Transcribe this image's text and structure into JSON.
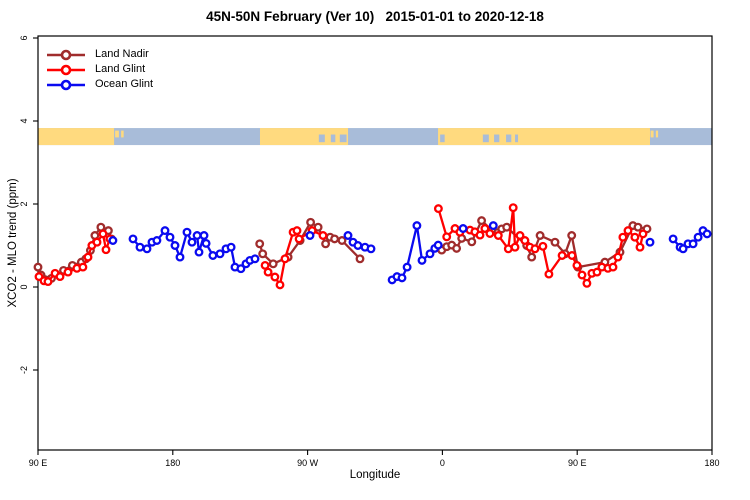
{
  "title": "45N-50N February (Ver 10)   2015-01-01 to 2020-12-18",
  "colors": {
    "land_nadir": "#A02C2C",
    "land_glint": "#FF0000",
    "ocean_glint": "#0A0AF0",
    "map_land": "#FFDA7F",
    "map_ocean": "#A8BCD9",
    "axis": "#000000",
    "marker_fill": "#FFFFFF"
  },
  "legend": {
    "items": [
      {
        "label": "Land Nadir",
        "color": "#A02C2C"
      },
      {
        "label": "Land Glint",
        "color": "#FF0000"
      },
      {
        "label": "Ocean Glint",
        "color": "#0A0AF0"
      }
    ]
  },
  "chart_data": {
    "type": "line",
    "title": "45N-50N February (Ver 10)   2015-01-01 to 2020-12-18",
    "x_axis": {
      "label": "Longitude",
      "unit": "degrees east of 90E (longitude wraps 90E-180-90W-0-90E-180)",
      "range": [
        0,
        450
      ],
      "ticks": [
        {
          "pos": 0,
          "label": "90 E"
        },
        {
          "pos": 90,
          "label": "180"
        },
        {
          "pos": 180,
          "label": "90 W"
        },
        {
          "pos": 270,
          "label": "0"
        },
        {
          "pos": 360,
          "label": "90 E"
        },
        {
          "pos": 450,
          "label": "180"
        }
      ]
    },
    "y_axis": {
      "label": "XCO2 - MLO trend (ppm)",
      "range": [
        -3.9,
        6.0
      ],
      "ticks": [
        {
          "val": 6,
          "label": "6"
        },
        {
          "val": 4,
          "label": "4"
        },
        {
          "val": 2,
          "label": "2"
        },
        {
          "val": 0,
          "label": "0"
        },
        {
          "val": -2,
          "label": "-2"
        }
      ]
    },
    "grid": false,
    "legend_position": "top-left-inside",
    "map_strip": {
      "description": "coastline band showing land/ocean along the 45N-50N latitude zone",
      "y_range_ppm": [
        3.42,
        3.83
      ],
      "land_color": "#FFDA7F",
      "ocean_color": "#A8BCD9",
      "land_segments_deg": [
        [
          0,
          50.8
        ],
        [
          148.2,
          207.0
        ],
        [
          267.1,
          408.6
        ]
      ],
      "water_inlets_deg": [
        [
          187.5,
          191.5
        ],
        [
          195.5,
          198.5
        ],
        [
          201.5,
          206
        ],
        [
          268.5,
          271.5
        ],
        [
          297,
          301
        ],
        [
          304.5,
          308
        ],
        [
          312.5,
          316
        ],
        [
          318.5,
          320.5
        ]
      ],
      "island_specks_deg": [
        [
          51.5,
          54
        ],
        [
          55.5,
          57.2
        ],
        [
          409,
          411
        ],
        [
          412.5,
          414
        ]
      ]
    },
    "series": [
      {
        "name": "Land Nadir",
        "color": "#A02C2C",
        "marker": "open-circle",
        "runs": [
          [
            [
              0,
              0.48
            ],
            [
              2,
              0.29
            ],
            [
              9,
              0.21
            ],
            [
              17,
              0.4
            ],
            [
              23,
              0.52
            ],
            [
              29,
              0.6
            ],
            [
              32,
              0.68
            ],
            [
              35,
              0.88
            ],
            [
              38,
              1.24
            ],
            [
              42,
              1.44
            ],
            [
              47,
              1.36
            ],
            [
              49,
              1.16
            ]
          ],
          [
            [
              148,
              1.04
            ],
            [
              150,
              0.8
            ],
            [
              157,
              0.56
            ],
            [
              167,
              0.72
            ],
            [
              175,
              1.12
            ],
            [
              182,
              1.56
            ],
            [
              187,
              1.44
            ],
            [
              192,
              1.04
            ],
            [
              195,
              1.2
            ],
            [
              198,
              1.16
            ],
            [
              203,
              1.12
            ],
            [
              215,
              0.68
            ]
          ],
          [
            [
              269.5,
              0.89
            ],
            [
              272.9,
              0.97
            ],
            [
              276.2,
              1.01
            ],
            [
              279.5,
              0.93
            ],
            [
              282.9,
              1.17
            ],
            [
              289.6,
              1.09
            ],
            [
              296.2,
              1.6
            ],
            [
              302.9,
              1.37
            ],
            [
              309.6,
              1.4
            ],
            [
              312.9,
              1.44
            ],
            [
              326.3,
              1.0
            ],
            [
              329.6,
              0.72
            ],
            [
              335.2,
              1.24
            ],
            [
              345.2,
              1.08
            ],
            [
              351.9,
              0.8
            ],
            [
              356.3,
              1.24
            ],
            [
              360.5,
              0.48
            ],
            [
              378.5,
              0.6
            ],
            [
              388.6,
              0.84
            ],
            [
              397.2,
              1.48
            ],
            [
              400.6,
              1.44
            ],
            [
              406.6,
              1.4
            ]
          ]
        ]
      },
      {
        "name": "Land Glint",
        "color": "#FF0000",
        "marker": "open-circle",
        "runs": [
          [
            [
              0.7,
              0.25
            ],
            [
              4,
              0.15
            ],
            [
              6.7,
              0.13
            ],
            [
              11.4,
              0.33
            ],
            [
              14.7,
              0.25
            ],
            [
              20,
              0.36
            ],
            [
              26,
              0.45
            ],
            [
              30,
              0.48
            ],
            [
              33.4,
              0.72
            ],
            [
              36,
              1.0
            ],
            [
              39.4,
              1.08
            ],
            [
              43.4,
              1.28
            ],
            [
              45.4,
              0.9
            ],
            [
              48,
              1.16
            ]
          ],
          [
            [
              151.6,
              0.52
            ],
            [
              153.6,
              0.36
            ],
            [
              158.2,
              0.24
            ],
            [
              161.6,
              0.05
            ],
            [
              164.9,
              0.68
            ],
            [
              170.3,
              1.32
            ],
            [
              172.9,
              1.36
            ],
            [
              174.3,
              1.16
            ],
            [
              183,
              1.36
            ],
            [
              190.3,
              1.24
            ]
          ],
          [
            [
              267.3,
              1.89
            ],
            [
              272.9,
              1.21
            ],
            [
              278.4,
              1.41
            ],
            [
              281.7,
              1.32
            ],
            [
              288.4,
              1.37
            ],
            [
              291.7,
              1.33
            ],
            [
              295.1,
              1.25
            ],
            [
              298.4,
              1.41
            ],
            [
              301.7,
              1.29
            ],
            [
              307.3,
              1.24
            ],
            [
              314,
              0.92
            ],
            [
              317.3,
              1.91
            ],
            [
              318.5,
              0.96
            ],
            [
              321.8,
              1.24
            ],
            [
              325.1,
              1.12
            ],
            [
              328.4,
              0.96
            ],
            [
              331.8,
              0.92
            ],
            [
              337.1,
              0.98
            ],
            [
              341.1,
              0.31
            ],
            [
              349.9,
              0.76
            ],
            [
              356.5,
              0.76
            ],
            [
              359.8,
              0.52
            ],
            [
              363.2,
              0.29
            ],
            [
              366.5,
              0.09
            ],
            [
              369.8,
              0.33
            ],
            [
              373.2,
              0.36
            ],
            [
              376.5,
              0.48
            ],
            [
              380.5,
              0.45
            ],
            [
              383.9,
              0.48
            ],
            [
              387.2,
              0.72
            ],
            [
              390.5,
              1.2
            ],
            [
              393.9,
              1.36
            ],
            [
              398.5,
              1.2
            ],
            [
              401.9,
              0.96
            ],
            [
              403.9,
              1.28
            ]
          ]
        ]
      },
      {
        "name": "Ocean Glint",
        "color": "#0A0AF0",
        "marker": "open-circle",
        "runs": [
          [
            [
              50,
              1.12
            ]
          ],
          [
            [
              63.4,
              1.16
            ],
            [
              68.1,
              0.96
            ],
            [
              72.8,
              0.92
            ],
            [
              76.1,
              1.08
            ],
            [
              79.4,
              1.12
            ],
            [
              84.8,
              1.36
            ],
            [
              88.1,
              1.2
            ],
            [
              91.5,
              1.0
            ],
            [
              94.8,
              0.72
            ],
            [
              99.5,
              1.32
            ],
            [
              102.8,
              1.08
            ],
            [
              106.2,
              1.24
            ],
            [
              107.5,
              0.84
            ],
            [
              110.8,
              1.24
            ],
            [
              112.2,
              1.05
            ],
            [
              116.8,
              0.76
            ],
            [
              121.5,
              0.8
            ],
            [
              125.5,
              0.92
            ],
            [
              128.9,
              0.96
            ],
            [
              131.5,
              0.48
            ],
            [
              135.5,
              0.44
            ],
            [
              138.9,
              0.56
            ],
            [
              141.5,
              0.64
            ],
            [
              144.9,
              0.68
            ]
          ],
          [
            [
              181.6,
              1.24
            ]
          ],
          [
            [
              207,
              1.24
            ],
            [
              210.3,
              1.08
            ],
            [
              213.6,
              1.0
            ],
            [
              218.3,
              0.96
            ],
            [
              222.3,
              0.92
            ]
          ],
          [
            [
              236.4,
              0.17
            ],
            [
              239.7,
              0.25
            ],
            [
              243,
              0.22
            ],
            [
              246.4,
              0.48
            ],
            [
              253,
              1.48
            ],
            [
              256.4,
              0.64
            ],
            [
              261.7,
              0.8
            ],
            [
              264.9,
              0.93
            ],
            [
              267.2,
              1.01
            ]
          ],
          [
            [
              283.8,
              1.41
            ]
          ],
          [
            [
              304,
              1.48
            ]
          ],
          [
            [
              408.6,
              1.08
            ]
          ],
          [
            [
              424,
              1.16
            ],
            [
              428.7,
              0.96
            ],
            [
              430.7,
              0.92
            ],
            [
              434,
              1.04
            ],
            [
              437.4,
              1.04
            ],
            [
              440.7,
              1.2
            ],
            [
              444,
              1.36
            ],
            [
              446.7,
              1.28
            ]
          ]
        ]
      }
    ]
  }
}
